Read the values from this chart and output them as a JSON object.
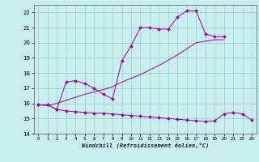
{
  "title": "",
  "xlabel": "Windchill (Refroidissement éolien,°C)",
  "bg_color": "#c8eef0",
  "line_color": "#990099",
  "grid_color": "#99cccc",
  "ylim": [
    14,
    22.5
  ],
  "xlim": [
    -0.5,
    23.5
  ],
  "yticks": [
    14,
    15,
    16,
    17,
    18,
    19,
    20,
    21,
    22
  ],
  "xticks": [
    0,
    1,
    2,
    3,
    4,
    5,
    6,
    7,
    8,
    9,
    10,
    11,
    12,
    13,
    14,
    15,
    16,
    17,
    18,
    19,
    20,
    21,
    22,
    23
  ],
  "series": [
    {
      "x": [
        0,
        1,
        2,
        3,
        4,
        5,
        6,
        7,
        8,
        9,
        10,
        11,
        12,
        13,
        14,
        15,
        16,
        17,
        18,
        19,
        20
      ],
      "y": [
        15.9,
        15.9,
        15.6,
        17.4,
        17.5,
        17.3,
        17.0,
        16.6,
        16.3,
        18.8,
        19.8,
        21.0,
        21.0,
        20.9,
        20.9,
        21.7,
        22.1,
        22.1,
        20.6,
        20.4,
        20.4
      ],
      "has_markers": true
    },
    {
      "x": [
        0,
        1,
        2,
        3,
        4,
        5,
        6,
        7,
        8,
        9,
        10,
        11,
        12,
        13,
        14,
        15,
        16,
        17,
        18,
        19,
        20
      ],
      "y": [
        15.9,
        15.85,
        16.0,
        16.2,
        16.4,
        16.6,
        16.75,
        16.9,
        17.1,
        17.4,
        17.65,
        17.9,
        18.2,
        18.5,
        18.85,
        19.2,
        19.6,
        20.0,
        20.1,
        20.2,
        20.2
      ],
      "has_markers": false
    },
    {
      "x": [
        0,
        1,
        2,
        3,
        4,
        5,
        6,
        7,
        8,
        9,
        10,
        11,
        12,
        13,
        14,
        15,
        16,
        17,
        18,
        19,
        20,
        21,
        22,
        23
      ],
      "y": [
        15.9,
        15.9,
        15.6,
        15.5,
        15.45,
        15.4,
        15.35,
        15.35,
        15.3,
        15.25,
        15.2,
        15.15,
        15.1,
        15.05,
        15.0,
        14.95,
        14.9,
        14.85,
        14.8,
        14.85,
        15.3,
        15.4,
        15.3,
        14.9
      ],
      "has_markers": true
    }
  ]
}
